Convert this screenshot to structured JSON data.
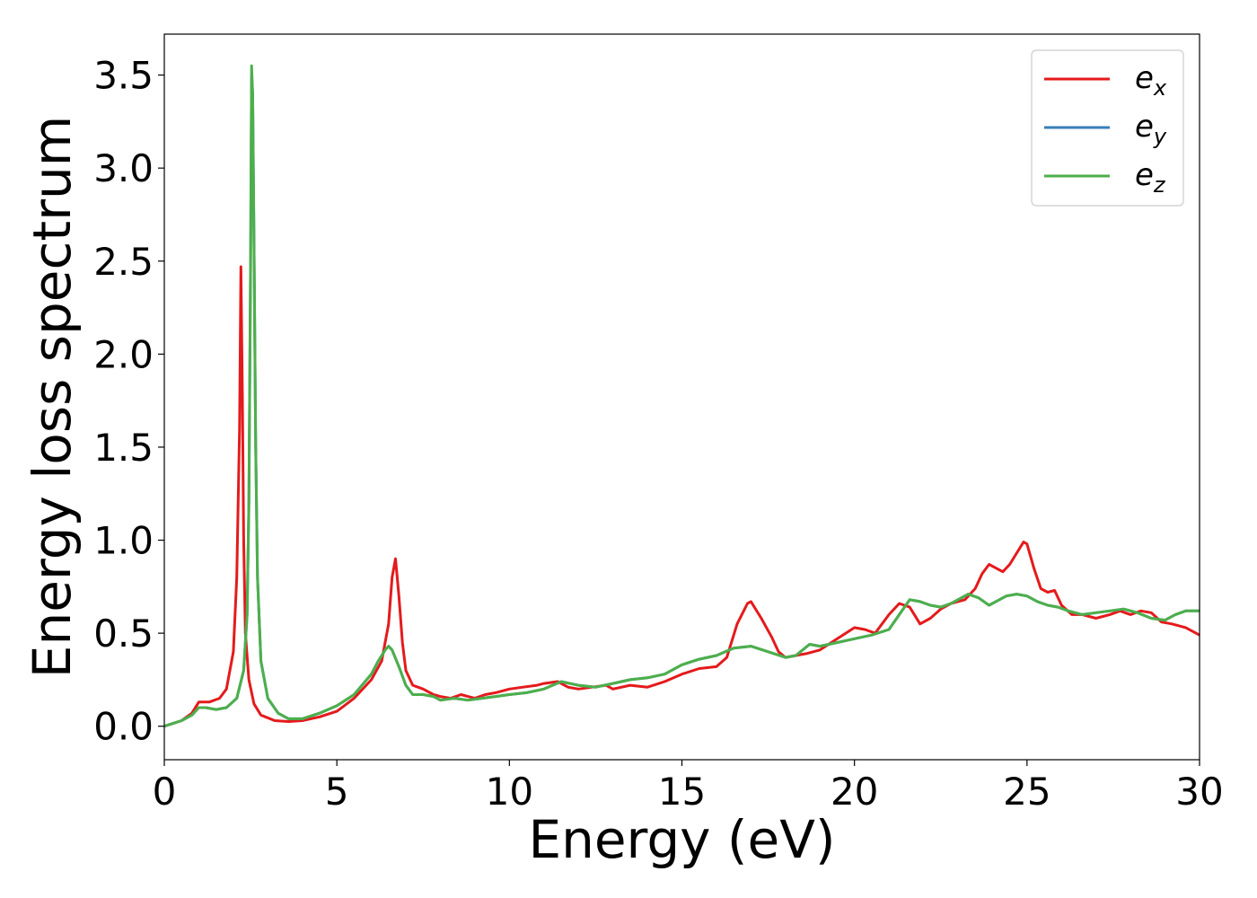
{
  "chart_data": {
    "type": "line",
    "title": "",
    "xlabel": "Energy (eV)",
    "ylabel": "Energy loss spectrum",
    "xlim": [
      0,
      30
    ],
    "ylim": [
      -0.18,
      3.72
    ],
    "xticks": [
      0,
      5,
      10,
      15,
      20,
      25,
      30
    ],
    "xtick_labels": [
      "0",
      "5",
      "10",
      "15",
      "20",
      "25",
      "30"
    ],
    "yticks": [
      0.0,
      0.5,
      1.0,
      1.5,
      2.0,
      2.5,
      3.0,
      3.5
    ],
    "ytick_labels": [
      "0.0",
      "0.5",
      "1.0",
      "1.5",
      "2.0",
      "2.5",
      "3.0",
      "3.5"
    ],
    "grid": false,
    "legend_position": "top-right",
    "series": [
      {
        "name": "e_x",
        "label_base": "e",
        "label_sub": "x",
        "color": "#e41a1c",
        "x": [
          0,
          0.5,
          0.8,
          1.0,
          1.3,
          1.6,
          1.8,
          2.0,
          2.1,
          2.18,
          2.22,
          2.26,
          2.3,
          2.35,
          2.45,
          2.6,
          2.8,
          3.2,
          3.6,
          4.0,
          4.5,
          5.0,
          5.5,
          6.0,
          6.3,
          6.5,
          6.6,
          6.7,
          6.8,
          6.9,
          7.0,
          7.2,
          7.5,
          7.8,
          8.0,
          8.3,
          8.6,
          8.8,
          9.0,
          9.3,
          9.6,
          10.0,
          10.4,
          10.8,
          11.0,
          11.4,
          11.7,
          12.0,
          12.4,
          12.8,
          13.0,
          13.5,
          14.0,
          14.5,
          15.0,
          15.5,
          16.0,
          16.3,
          16.6,
          16.9,
          17.0,
          17.3,
          17.6,
          17.8,
          18.0,
          18.3,
          18.6,
          19.0,
          19.5,
          20.0,
          20.3,
          20.6,
          21.0,
          21.3,
          21.6,
          21.9,
          22.2,
          22.5,
          22.8,
          23.0,
          23.2,
          23.5,
          23.7,
          23.9,
          24.1,
          24.3,
          24.5,
          24.7,
          24.9,
          25.0,
          25.2,
          25.4,
          25.6,
          25.8,
          26.0,
          26.3,
          26.6,
          27.0,
          27.4,
          27.7,
          28.0,
          28.3,
          28.6,
          28.9,
          29.2,
          29.6,
          30.0
        ],
        "y": [
          0.0,
          0.03,
          0.07,
          0.13,
          0.13,
          0.15,
          0.2,
          0.4,
          0.8,
          1.6,
          2.47,
          1.8,
          1.0,
          0.5,
          0.25,
          0.12,
          0.06,
          0.03,
          0.025,
          0.03,
          0.05,
          0.08,
          0.15,
          0.25,
          0.35,
          0.55,
          0.8,
          0.9,
          0.7,
          0.45,
          0.3,
          0.22,
          0.2,
          0.17,
          0.16,
          0.15,
          0.17,
          0.16,
          0.15,
          0.17,
          0.18,
          0.2,
          0.21,
          0.22,
          0.23,
          0.24,
          0.21,
          0.2,
          0.21,
          0.22,
          0.2,
          0.22,
          0.21,
          0.24,
          0.28,
          0.31,
          0.32,
          0.37,
          0.55,
          0.66,
          0.67,
          0.58,
          0.48,
          0.4,
          0.37,
          0.38,
          0.39,
          0.41,
          0.47,
          0.53,
          0.52,
          0.5,
          0.6,
          0.66,
          0.64,
          0.55,
          0.58,
          0.63,
          0.66,
          0.67,
          0.68,
          0.74,
          0.82,
          0.87,
          0.85,
          0.83,
          0.87,
          0.93,
          0.99,
          0.98,
          0.85,
          0.74,
          0.72,
          0.73,
          0.65,
          0.6,
          0.6,
          0.58,
          0.6,
          0.62,
          0.6,
          0.62,
          0.61,
          0.56,
          0.55,
          0.53,
          0.49
        ]
      },
      {
        "name": "e_y",
        "label_base": "e",
        "label_sub": "y",
        "color": "#377eb8",
        "x": [
          0,
          0.5,
          0.8,
          1.0,
          1.2,
          1.5,
          1.8,
          2.1,
          2.3,
          2.4,
          2.45,
          2.5,
          2.53,
          2.56,
          2.6,
          2.65,
          2.7,
          2.8,
          3.0,
          3.3,
          3.6,
          4.0,
          4.5,
          5.0,
          5.5,
          6.0,
          6.2,
          6.4,
          6.5,
          6.6,
          6.8,
          7.0,
          7.2,
          7.5,
          7.8,
          8.0,
          8.4,
          8.8,
          9.2,
          9.6,
          10.0,
          10.5,
          11.0,
          11.5,
          12.0,
          12.5,
          13.0,
          13.5,
          14.0,
          14.5,
          15.0,
          15.5,
          16.0,
          16.5,
          17.0,
          17.5,
          18.0,
          18.3,
          18.7,
          19.0,
          19.5,
          20.0,
          20.5,
          21.0,
          21.3,
          21.6,
          21.9,
          22.2,
          22.5,
          22.8,
          23.0,
          23.3,
          23.6,
          23.9,
          24.1,
          24.4,
          24.7,
          25.0,
          25.3,
          25.6,
          25.9,
          26.2,
          26.6,
          27.0,
          27.4,
          27.8,
          28.2,
          28.6,
          29.0,
          29.3,
          29.6,
          30.0
        ],
        "y": [
          0.0,
          0.03,
          0.06,
          0.1,
          0.1,
          0.09,
          0.1,
          0.15,
          0.3,
          0.6,
          1.2,
          2.5,
          3.5,
          3.4,
          2.6,
          1.5,
          0.8,
          0.35,
          0.15,
          0.07,
          0.04,
          0.04,
          0.07,
          0.11,
          0.17,
          0.28,
          0.35,
          0.41,
          0.43,
          0.41,
          0.32,
          0.22,
          0.17,
          0.17,
          0.16,
          0.14,
          0.15,
          0.14,
          0.15,
          0.16,
          0.17,
          0.18,
          0.2,
          0.24,
          0.22,
          0.21,
          0.23,
          0.25,
          0.26,
          0.28,
          0.33,
          0.36,
          0.38,
          0.42,
          0.43,
          0.4,
          0.37,
          0.38,
          0.44,
          0.43,
          0.45,
          0.47,
          0.49,
          0.52,
          0.6,
          0.68,
          0.67,
          0.65,
          0.64,
          0.66,
          0.68,
          0.71,
          0.69,
          0.65,
          0.67,
          0.7,
          0.71,
          0.7,
          0.67,
          0.65,
          0.64,
          0.62,
          0.6,
          0.61,
          0.62,
          0.63,
          0.61,
          0.58,
          0.57,
          0.6,
          0.62,
          0.62
        ]
      },
      {
        "name": "e_z",
        "label_base": "e",
        "label_sub": "z",
        "color": "#4daf4a",
        "x": [
          0,
          0.5,
          0.8,
          1.0,
          1.2,
          1.5,
          1.8,
          2.1,
          2.3,
          2.4,
          2.45,
          2.5,
          2.53,
          2.56,
          2.6,
          2.65,
          2.7,
          2.8,
          3.0,
          3.3,
          3.6,
          4.0,
          4.5,
          5.0,
          5.5,
          6.0,
          6.2,
          6.4,
          6.5,
          6.6,
          6.8,
          7.0,
          7.2,
          7.5,
          7.8,
          8.0,
          8.4,
          8.8,
          9.2,
          9.6,
          10.0,
          10.5,
          11.0,
          11.5,
          12.0,
          12.5,
          13.0,
          13.5,
          14.0,
          14.5,
          15.0,
          15.5,
          16.0,
          16.5,
          17.0,
          17.5,
          18.0,
          18.3,
          18.7,
          19.0,
          19.5,
          20.0,
          20.5,
          21.0,
          21.3,
          21.6,
          21.9,
          22.2,
          22.5,
          22.8,
          23.0,
          23.3,
          23.6,
          23.9,
          24.1,
          24.4,
          24.7,
          25.0,
          25.3,
          25.6,
          25.9,
          26.2,
          26.6,
          27.0,
          27.4,
          27.8,
          28.2,
          28.6,
          29.0,
          29.3,
          29.6,
          30.0
        ],
        "y": [
          0.0,
          0.03,
          0.06,
          0.1,
          0.1,
          0.09,
          0.1,
          0.15,
          0.3,
          0.6,
          1.2,
          2.5,
          3.55,
          3.4,
          2.6,
          1.5,
          0.8,
          0.35,
          0.15,
          0.07,
          0.04,
          0.04,
          0.07,
          0.11,
          0.17,
          0.28,
          0.35,
          0.41,
          0.43,
          0.41,
          0.32,
          0.22,
          0.17,
          0.17,
          0.16,
          0.14,
          0.15,
          0.14,
          0.15,
          0.16,
          0.17,
          0.18,
          0.2,
          0.24,
          0.22,
          0.21,
          0.23,
          0.25,
          0.26,
          0.28,
          0.33,
          0.36,
          0.38,
          0.42,
          0.43,
          0.4,
          0.37,
          0.38,
          0.44,
          0.43,
          0.45,
          0.47,
          0.49,
          0.52,
          0.6,
          0.68,
          0.67,
          0.65,
          0.64,
          0.66,
          0.68,
          0.71,
          0.69,
          0.65,
          0.67,
          0.7,
          0.71,
          0.7,
          0.67,
          0.65,
          0.64,
          0.62,
          0.6,
          0.61,
          0.62,
          0.63,
          0.61,
          0.58,
          0.57,
          0.6,
          0.62,
          0.62
        ]
      }
    ]
  }
}
